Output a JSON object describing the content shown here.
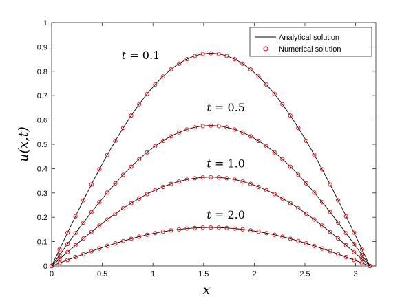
{
  "chart_data": {
    "type": "line",
    "xlabel": "x",
    "ylabel": "u(x,t)",
    "xlim": [
      0,
      3.2
    ],
    "ylim": [
      0,
      1
    ],
    "x_ticks": [
      0,
      0.5,
      1,
      1.5,
      2,
      2.5,
      3
    ],
    "x_tick_labels": [
      "0",
      "0.5",
      "1",
      "1.5",
      "2",
      "2.5",
      "3"
    ],
    "y_ticks": [
      0,
      0.1,
      0.2,
      0.3,
      0.4,
      0.5,
      0.6,
      0.7,
      0.8,
      0.9,
      1
    ],
    "y_tick_labels": [
      "0",
      "0.1",
      "0.2",
      "0.3",
      "0.4",
      "0.5",
      "0.6",
      "0.7",
      "0.8",
      "0.9",
      "1"
    ],
    "grid": false,
    "legend": {
      "placement": "top-right",
      "entries": [
        "Analytical solution",
        "Numerical solution"
      ]
    },
    "colors": {
      "analytical": "#000000",
      "numerical": "#e41a1c"
    },
    "x_domain": [
      0,
      3.14159
    ],
    "points_per_series": 41,
    "series": [
      {
        "t_label": "0.1",
        "peak": 0.874,
        "label_x": 0.88,
        "label_y": 0.85
      },
      {
        "t_label": "0.5",
        "peak": 0.577,
        "label_x": 1.72,
        "label_y": 0.635
      },
      {
        "t_label": "1.0",
        "peak": 0.365,
        "label_x": 1.72,
        "label_y": 0.405
      },
      {
        "t_label": "2.0",
        "peak": 0.158,
        "label_x": 1.72,
        "label_y": 0.195
      }
    ]
  }
}
